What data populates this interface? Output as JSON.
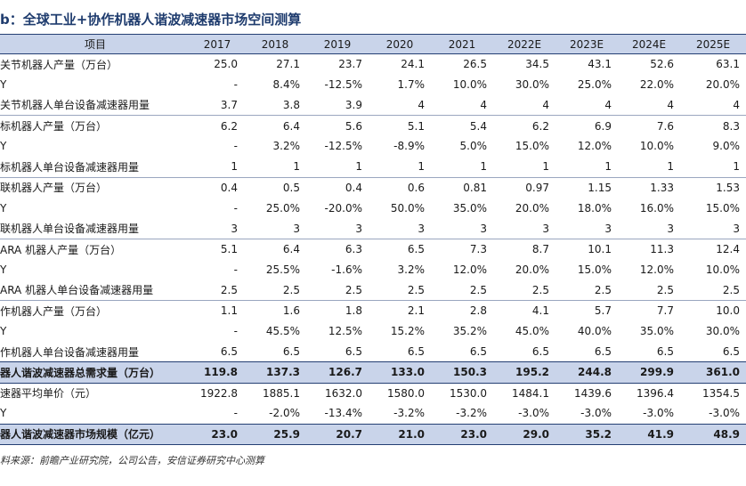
{
  "title": "b：全球工业+协作机器人谐波减速器市场空间测算",
  "headers": [
    "项目",
    "2017",
    "2018",
    "2019",
    "2020",
    "2021",
    "2022E",
    "2023E",
    "2024E",
    "2025E"
  ],
  "rows": [
    {
      "label": "关节机器人产量（万台）",
      "values": [
        "25.0",
        "27.1",
        "23.7",
        "24.1",
        "26.5",
        "34.5",
        "43.1",
        "52.6",
        "63.1"
      ],
      "group_start": true
    },
    {
      "label": "Y",
      "values": [
        "-",
        "8.4%",
        "-12.5%",
        "1.7%",
        "10.0%",
        "30.0%",
        "25.0%",
        "22.0%",
        "20.0%"
      ]
    },
    {
      "label": "关节机器人单台设备减速器用量",
      "values": [
        "3.7",
        "3.8",
        "3.9",
        "4",
        "4",
        "4",
        "4",
        "4",
        "4"
      ]
    },
    {
      "label": "标机器人产量（万台）",
      "values": [
        "6.2",
        "6.4",
        "5.6",
        "5.1",
        "5.4",
        "6.2",
        "6.9",
        "7.6",
        "8.3"
      ],
      "group_start": true
    },
    {
      "label": "Y",
      "values": [
        "-",
        "3.2%",
        "-12.5%",
        "-8.9%",
        "5.0%",
        "15.0%",
        "12.0%",
        "10.0%",
        "9.0%"
      ]
    },
    {
      "label": "标机器人单台设备减速器用量",
      "values": [
        "1",
        "1",
        "1",
        "1",
        "1",
        "1",
        "1",
        "1",
        "1"
      ]
    },
    {
      "label": "联机器人产量（万台）",
      "values": [
        "0.4",
        "0.5",
        "0.4",
        "0.6",
        "0.81",
        "0.97",
        "1.15",
        "1.33",
        "1.53"
      ],
      "group_start": true
    },
    {
      "label": "Y",
      "values": [
        "-",
        "25.0%",
        "-20.0%",
        "50.0%",
        "35.0%",
        "20.0%",
        "18.0%",
        "16.0%",
        "15.0%"
      ]
    },
    {
      "label": "联机器人单台设备减速器用量",
      "values": [
        "3",
        "3",
        "3",
        "3",
        "3",
        "3",
        "3",
        "3",
        "3"
      ]
    },
    {
      "label": "ARA 机器人产量（万台）",
      "values": [
        "5.1",
        "6.4",
        "6.3",
        "6.5",
        "7.3",
        "8.7",
        "10.1",
        "11.3",
        "12.4"
      ],
      "group_start": true
    },
    {
      "label": "Y",
      "values": [
        "-",
        "25.5%",
        "-1.6%",
        "3.2%",
        "12.0%",
        "20.0%",
        "15.0%",
        "12.0%",
        "10.0%"
      ]
    },
    {
      "label": "ARA 机器人单台设备减速器用量",
      "values": [
        "2.5",
        "2.5",
        "2.5",
        "2.5",
        "2.5",
        "2.5",
        "2.5",
        "2.5",
        "2.5"
      ]
    },
    {
      "label": "作机器人产量（万台）",
      "values": [
        "1.1",
        "1.6",
        "1.8",
        "2.1",
        "2.8",
        "4.1",
        "5.7",
        "7.7",
        "10.0"
      ],
      "group_start": true
    },
    {
      "label": "Y",
      "values": [
        "-",
        "45.5%",
        "12.5%",
        "15.2%",
        "35.2%",
        "45.0%",
        "40.0%",
        "35.0%",
        "30.0%"
      ]
    },
    {
      "label": "作机器人单台设备减速器用量",
      "values": [
        "6.5",
        "6.5",
        "6.5",
        "6.5",
        "6.5",
        "6.5",
        "6.5",
        "6.5",
        "6.5"
      ]
    },
    {
      "label": "器人谐波减速器总需求量（万台）",
      "values": [
        "119.8",
        "137.3",
        "126.7",
        "133.0",
        "150.3",
        "195.2",
        "244.8",
        "299.9",
        "361.0"
      ],
      "highlight": true
    },
    {
      "label": "速器平均单价（元）",
      "values": [
        "1922.8",
        "1885.1",
        "1632.0",
        "1580.0",
        "1530.0",
        "1484.1",
        "1439.6",
        "1396.4",
        "1354.5"
      ]
    },
    {
      "label": "Y",
      "values": [
        "-",
        "-2.0%",
        "-13.4%",
        "-3.2%",
        "-3.2%",
        "-3.0%",
        "-3.0%",
        "-3.0%",
        "-3.0%"
      ]
    },
    {
      "label": "器人谐波减速器市场规模（亿元）",
      "values": [
        "23.0",
        "25.9",
        "20.7",
        "21.0",
        "23.0",
        "29.0",
        "35.2",
        "41.9",
        "48.9"
      ],
      "highlight": true,
      "last": true
    }
  ],
  "source": "料来源：前瞻产业研究院，公司公告，安信证券研究中心测算"
}
